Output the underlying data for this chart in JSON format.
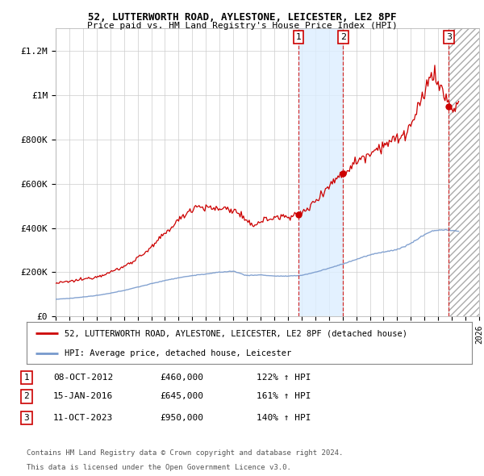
{
  "title": "52, LUTTERWORTH ROAD, AYLESTONE, LEICESTER, LE2 8PF",
  "subtitle": "Price paid vs. HM Land Registry's House Price Index (HPI)",
  "ylabel_ticks": [
    "£0",
    "£200K",
    "£400K",
    "£600K",
    "£800K",
    "£1M",
    "£1.2M"
  ],
  "ytick_values": [
    0,
    200000,
    400000,
    600000,
    800000,
    1000000,
    1200000
  ],
  "ylim": [
    0,
    1300000
  ],
  "xlim_start": 1995.0,
  "xlim_end": 2026.0,
  "sale_dates": [
    2012.77,
    2016.04,
    2023.78
  ],
  "sale_prices": [
    460000,
    645000,
    950000
  ],
  "sale_labels": [
    "1",
    "2",
    "3"
  ],
  "sale_date_strs": [
    "08-OCT-2012",
    "15-JAN-2016",
    "11-OCT-2023"
  ],
  "sale_price_strs": [
    "£460,000",
    "£645,000",
    "£950,000"
  ],
  "sale_hpi_strs": [
    "122% ↑ HPI",
    "161% ↑ HPI",
    "140% ↑ HPI"
  ],
  "legend_line1": "52, LUTTERWORTH ROAD, AYLESTONE, LEICESTER, LE2 8PF (detached house)",
  "legend_line2": "HPI: Average price, detached house, Leicester",
  "footer1": "Contains HM Land Registry data © Crown copyright and database right 2024.",
  "footer2": "This data is licensed under the Open Government Licence v3.0.",
  "line_color_red": "#cc0000",
  "line_color_blue": "#7799cc",
  "shade_color": "#ddeeff",
  "background_color": "#ffffff",
  "grid_color": "#cccccc"
}
